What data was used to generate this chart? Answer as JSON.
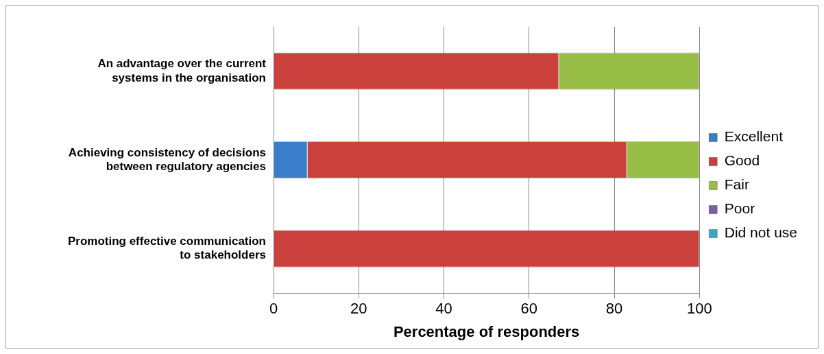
{
  "chart_data": {
    "type": "bar",
    "orientation": "horizontal",
    "stacked": true,
    "xlabel": "Percentage of responders",
    "categories": [
      "An advantage over the current systems in the organisation",
      "Achieving consistency of decisions between regulatory agencies",
      "Promoting effective communication to stakeholders"
    ],
    "series": [
      {
        "name": "Excellent",
        "color": "#3a7dc9",
        "values": [
          0,
          8,
          0
        ]
      },
      {
        "name": "Good",
        "color": "#c9403d",
        "values": [
          67,
          75,
          100
        ]
      },
      {
        "name": "Fair",
        "color": "#97bd47",
        "values": [
          33,
          17,
          0
        ]
      },
      {
        "name": "Poor",
        "color": "#7c5ea6",
        "values": [
          0,
          0,
          0
        ]
      },
      {
        "name": "Did not use",
        "color": "#3aa8c0",
        "values": [
          0,
          0,
          0
        ]
      }
    ],
    "xlim": [
      0,
      100
    ],
    "xticks": [
      0,
      20,
      40,
      60,
      80,
      100
    ],
    "grid": "x",
    "legend": "right"
  }
}
